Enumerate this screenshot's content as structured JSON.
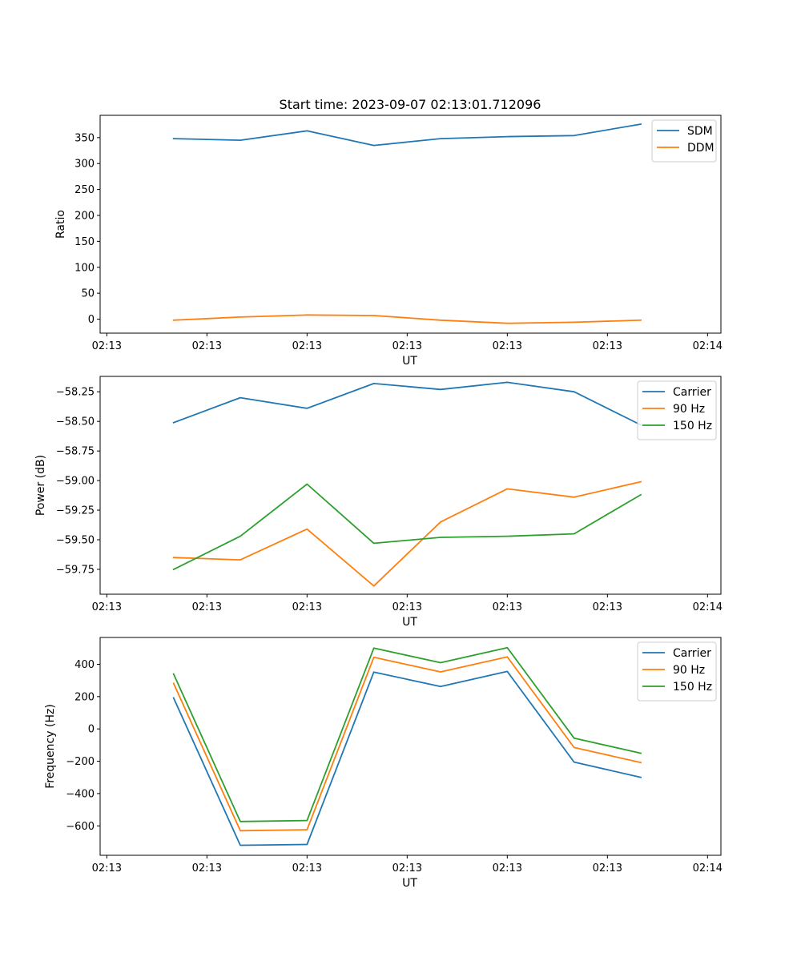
{
  "figure_title": "Start time: 2023-09-07 02:13:01.712096",
  "chart_data": [
    {
      "type": "line",
      "title": "Start time: 2023-09-07 02:13:01.712096",
      "xlabel": "UT",
      "ylabel": "Ratio",
      "x": [
        1,
        2,
        3,
        4,
        5,
        6,
        7,
        8
      ],
      "xlim": [
        -0.1,
        9.2
      ],
      "x_ticks": [
        0,
        1.5,
        3,
        4.5,
        6,
        7.5,
        9
      ],
      "x_tick_labels": [
        "02:13",
        "02:13",
        "02:13",
        "02:13",
        "02:13",
        "02:13",
        "02:14"
      ],
      "ylim": [
        -27,
        393
      ],
      "y_ticks": [
        0,
        50,
        100,
        150,
        200,
        250,
        300,
        350
      ],
      "y_tick_labels": [
        "0",
        "50",
        "100",
        "150",
        "200",
        "250",
        "300",
        "350"
      ],
      "legend": "top-right",
      "series": [
        {
          "name": "SDM",
          "color": "#1f77b4",
          "values": [
            348,
            345,
            363,
            335,
            348,
            352,
            354,
            376
          ]
        },
        {
          "name": "DDM",
          "color": "#ff7f0e",
          "values": [
            -2,
            4,
            8,
            7,
            -2,
            -8,
            -6,
            -2
          ]
        }
      ]
    },
    {
      "type": "line",
      "title": "",
      "xlabel": "UT",
      "ylabel": "Power (dB)",
      "x": [
        1,
        2,
        3,
        4,
        5,
        6,
        7,
        8
      ],
      "xlim": [
        -0.1,
        9.2
      ],
      "x_ticks": [
        0,
        1.5,
        3,
        4.5,
        6,
        7.5,
        9
      ],
      "x_tick_labels": [
        "02:13",
        "02:13",
        "02:13",
        "02:13",
        "02:13",
        "02:13",
        "02:14"
      ],
      "ylim": [
        -59.96,
        -58.12
      ],
      "y_ticks": [
        -59.75,
        -59.5,
        -59.25,
        -59.0,
        -58.75,
        -58.5,
        -58.25
      ],
      "y_tick_labels": [
        "−59.75",
        "−59.50",
        "−59.25",
        "−59.00",
        "−58.75",
        "−58.50",
        "−58.25"
      ],
      "legend": "top-right",
      "series": [
        {
          "name": "Carrier",
          "color": "#1f77b4",
          "values": [
            -58.51,
            -58.3,
            -58.39,
            -58.18,
            -58.23,
            -58.17,
            -58.25,
            -58.53
          ]
        },
        {
          "name": "90 Hz",
          "color": "#ff7f0e",
          "values": [
            -59.65,
            -59.67,
            -59.41,
            -59.89,
            -59.35,
            -59.07,
            -59.14,
            -59.01
          ]
        },
        {
          "name": "150 Hz",
          "color": "#2ca02c",
          "values": [
            -59.75,
            -59.47,
            -59.03,
            -59.53,
            -59.48,
            -59.47,
            -59.45,
            -59.12
          ]
        }
      ]
    },
    {
      "type": "line",
      "title": "",
      "xlabel": "UT",
      "ylabel": "Frequency (Hz)",
      "x": [
        1,
        2,
        3,
        4,
        5,
        6,
        7,
        8
      ],
      "xlim": [
        -0.1,
        9.2
      ],
      "x_ticks": [
        0,
        1.5,
        3,
        4.5,
        6,
        7.5,
        9
      ],
      "x_tick_labels": [
        "02:13",
        "02:13",
        "02:13",
        "02:13",
        "02:13",
        "02:13",
        "02:14"
      ],
      "ylim": [
        -782,
        566
      ],
      "y_ticks": [
        -600,
        -400,
        -200,
        0,
        200,
        400
      ],
      "y_tick_labels": [
        "−600",
        "−400",
        "−200",
        "0",
        "200",
        "400"
      ],
      "legend": "top-right",
      "series": [
        {
          "name": "Carrier",
          "color": "#1f77b4",
          "values": [
            192,
            -720,
            -715,
            352,
            262,
            356,
            -205,
            -300
          ]
        },
        {
          "name": "90 Hz",
          "color": "#ff7f0e",
          "values": [
            282,
            -630,
            -624,
            443,
            353,
            446,
            -115,
            -208
          ]
        },
        {
          "name": "150 Hz",
          "color": "#2ca02c",
          "values": [
            340,
            -573,
            -567,
            500,
            410,
            503,
            -57,
            -150
          ]
        }
      ]
    }
  ]
}
